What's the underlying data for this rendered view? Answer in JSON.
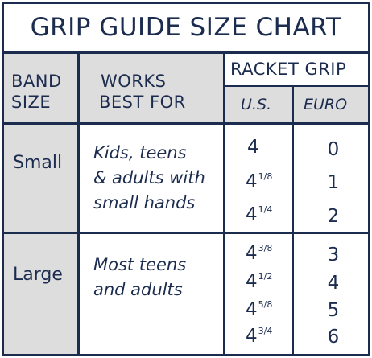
{
  "title": "GRIP GUIDE SIZE CHART",
  "headers": {
    "band_size_line1": "BAND",
    "band_size_line2": "SIZE",
    "works_line1": "WORKS",
    "works_line2": "BEST FOR",
    "racket_grip": "RACKET GRIP",
    "us": "U.S.",
    "euro": "EURO"
  },
  "rows": [
    {
      "band": "Small",
      "desc": [
        "Kids, teens",
        "& adults with",
        "small hands"
      ],
      "us": [
        {
          "whole": "4",
          "frac": ""
        },
        {
          "whole": "4",
          "frac": "1/8"
        },
        {
          "whole": "4",
          "frac": "1/4"
        }
      ],
      "euro": [
        "0",
        "1",
        "2"
      ]
    },
    {
      "band": "Large",
      "desc": [
        "Most teens",
        "and adults"
      ],
      "us": [
        {
          "whole": "4",
          "frac": "3/8"
        },
        {
          "whole": "4",
          "frac": "1/2"
        },
        {
          "whole": "4",
          "frac": "5/8"
        },
        {
          "whole": "4",
          "frac": "3/4"
        }
      ],
      "euro": [
        "3",
        "4",
        "5",
        "6"
      ]
    }
  ]
}
